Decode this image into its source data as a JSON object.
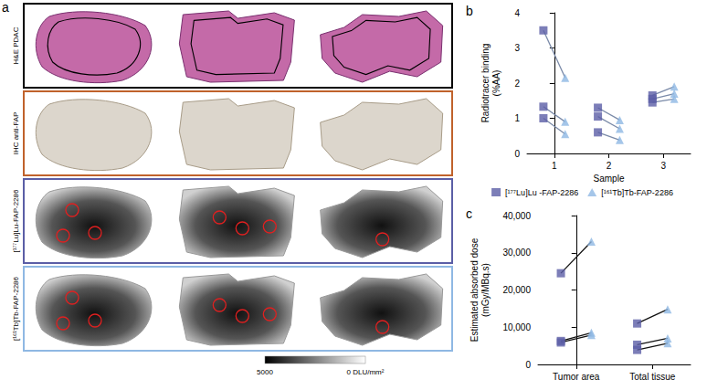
{
  "panel_a": {
    "panel_label": "a",
    "rows": [
      {
        "label": "H&E PDAC",
        "color": "#000000"
      },
      {
        "label": "IHC anti-FAP",
        "color": "#c0622b"
      },
      {
        "label": "[¹⁷⁷Lu]Lu-FAP-2286",
        "color": "#5b5ea6"
      },
      {
        "label": "[¹⁶¹Tb]Tb-FAP-2286",
        "color": "#8fb8e3"
      }
    ],
    "colorbar": {
      "max_label": "5000",
      "min_label": "0 DLU/mm²"
    }
  },
  "chart_data": [
    {
      "type": "paired",
      "panel_label": "b",
      "y_label": "Radiotracer binding (%AA)",
      "x_label": "Sample",
      "categories": [
        "1",
        "2",
        "3"
      ],
      "ylim": [
        0,
        4
      ],
      "yticks": [
        0,
        1,
        2,
        3,
        4
      ],
      "grid": false,
      "legend": "bottom",
      "series": [
        {
          "name": "[¹⁷⁷Lu]Lu -FAP-2286",
          "color": "#5b5ea6",
          "marker": "square",
          "values": [
            [
              3.5,
              1.33,
              1.0
            ],
            [
              1.3,
              1.05,
              0.6
            ],
            [
              1.65,
              1.55,
              1.45
            ]
          ]
        },
        {
          "name": "[¹⁶¹Tb]Tb-FAP-2286",
          "color": "#8fb8e3",
          "marker": "triangle",
          "values": [
            [
              2.15,
              0.9,
              0.55
            ],
            [
              0.95,
              0.7,
              0.38
            ],
            [
              1.9,
              1.7,
              1.55
            ]
          ]
        }
      ]
    },
    {
      "type": "paired",
      "panel_label": "c",
      "y_label": "Estimated absorbed dose (mGy/MBq.s)",
      "categories": [
        "Tumor area",
        "Total tissue"
      ],
      "ylim": [
        0,
        40000
      ],
      "yticks": [
        0,
        10000,
        20000,
        30000,
        40000
      ],
      "grid": false,
      "series": [
        {
          "color": "#5b5ea6",
          "marker": "square",
          "values": [
            [
              24500,
              6300,
              5900
            ],
            [
              11000,
              5300,
              3900
            ]
          ]
        },
        {
          "color": "#8fb8e3",
          "marker": "triangle",
          "values": [
            [
              33000,
              8500,
              7900
            ],
            [
              14800,
              7000,
              5700
            ]
          ]
        }
      ]
    }
  ]
}
